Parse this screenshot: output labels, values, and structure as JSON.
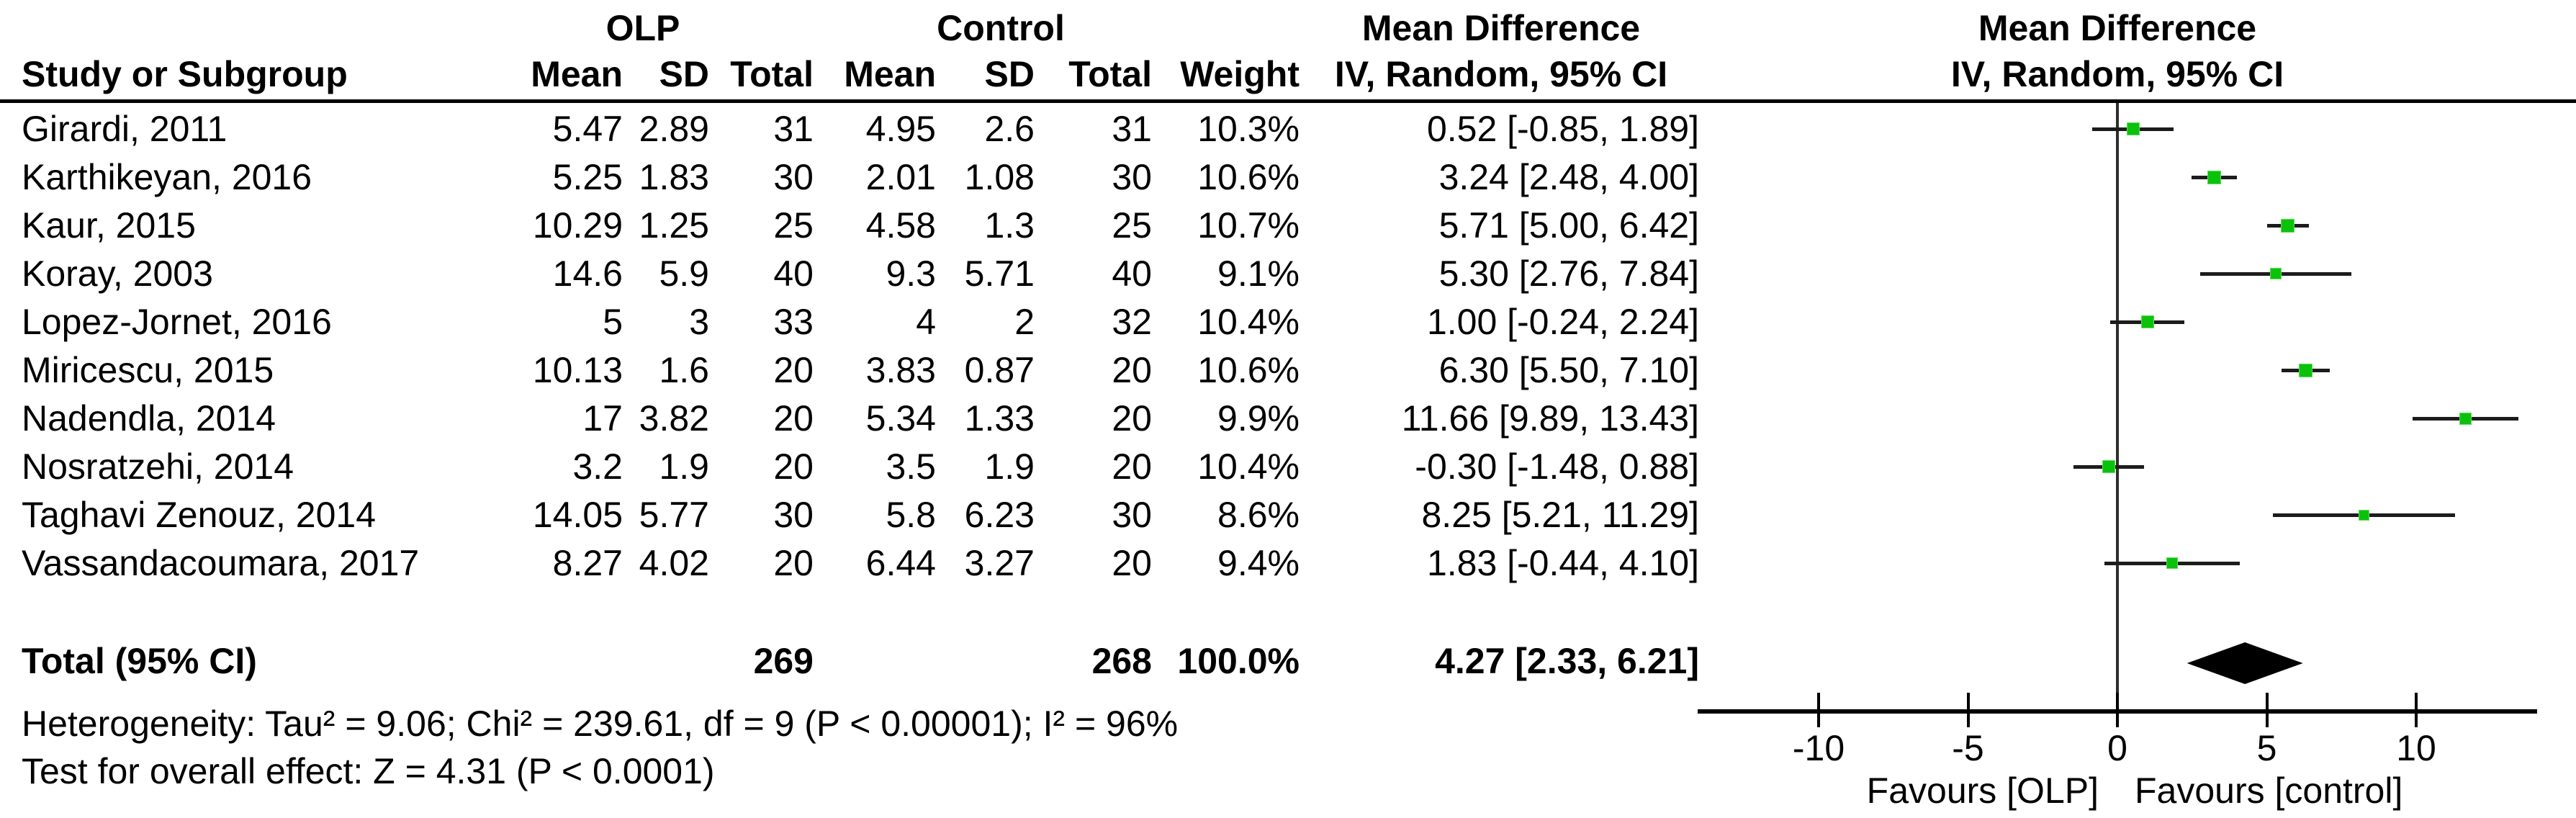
{
  "header": {
    "study_col": "Study or Subgroup",
    "group1": "OLP",
    "group2": "Control",
    "col_mean": "Mean",
    "col_sd": "SD",
    "col_total": "Total",
    "col_weight": "Weight",
    "effect_title": "Mean Difference",
    "effect_subtitle": "IV, Random, 95% CI",
    "plot_title": "Mean Difference",
    "plot_subtitle": "IV, Random, 95% CI"
  },
  "chart_data": {
    "type": "forest",
    "effect_measure": "Mean Difference, IV, Random, 95% CI",
    "marker_color": "#0bc20b",
    "diamond_color": "#000000",
    "studies": [
      {
        "label": "Girardi, 2011",
        "mean1": "5.47",
        "sd1": "2.89",
        "total1": "31",
        "mean2": "4.95",
        "sd2": "2.6",
        "total2": "31",
        "weight": "10.3%",
        "ci_text": "0.52 [-0.85, 1.89]",
        "md": 0.52,
        "lo": -0.85,
        "hi": 1.89,
        "weight_val": 10.3
      },
      {
        "label": "Karthikeyan, 2016",
        "mean1": "5.25",
        "sd1": "1.83",
        "total1": "30",
        "mean2": "2.01",
        "sd2": "1.08",
        "total2": "30",
        "weight": "10.6%",
        "ci_text": "3.24 [2.48, 4.00]",
        "md": 3.24,
        "lo": 2.48,
        "hi": 4.0,
        "weight_val": 10.6
      },
      {
        "label": "Kaur, 2015",
        "mean1": "10.29",
        "sd1": "1.25",
        "total1": "25",
        "mean2": "4.58",
        "sd2": "1.3",
        "total2": "25",
        "weight": "10.7%",
        "ci_text": "5.71 [5.00, 6.42]",
        "md": 5.71,
        "lo": 5.0,
        "hi": 6.42,
        "weight_val": 10.7
      },
      {
        "label": "Koray, 2003",
        "mean1": "14.6",
        "sd1": "5.9",
        "total1": "40",
        "mean2": "9.3",
        "sd2": "5.71",
        "total2": "40",
        "weight": "9.1%",
        "ci_text": "5.30 [2.76, 7.84]",
        "md": 5.3,
        "lo": 2.76,
        "hi": 7.84,
        "weight_val": 9.1
      },
      {
        "label": "Lopez-Jornet, 2016",
        "mean1": "5",
        "sd1": "3",
        "total1": "33",
        "mean2": "4",
        "sd2": "2",
        "total2": "32",
        "weight": "10.4%",
        "ci_text": "1.00 [-0.24, 2.24]",
        "md": 1.0,
        "lo": -0.24,
        "hi": 2.24,
        "weight_val": 10.4
      },
      {
        "label": "Miricescu, 2015",
        "mean1": "10.13",
        "sd1": "1.6",
        "total1": "20",
        "mean2": "3.83",
        "sd2": "0.87",
        "total2": "20",
        "weight": "10.6%",
        "ci_text": "6.30 [5.50, 7.10]",
        "md": 6.3,
        "lo": 5.5,
        "hi": 7.1,
        "weight_val": 10.6
      },
      {
        "label": "Nadendla, 2014",
        "mean1": "17",
        "sd1": "3.82",
        "total1": "20",
        "mean2": "5.34",
        "sd2": "1.33",
        "total2": "20",
        "weight": "9.9%",
        "ci_text": "11.66 [9.89, 13.43]",
        "md": 11.66,
        "lo": 9.89,
        "hi": 13.43,
        "weight_val": 9.9
      },
      {
        "label": "Nosratzehi, 2014",
        "mean1": "3.2",
        "sd1": "1.9",
        "total1": "20",
        "mean2": "3.5",
        "sd2": "1.9",
        "total2": "20",
        "weight": "10.4%",
        "ci_text": "-0.30 [-1.48, 0.88]",
        "md": -0.3,
        "lo": -1.48,
        "hi": 0.88,
        "weight_val": 10.4
      },
      {
        "label": "Taghavi Zenouz, 2014",
        "mean1": "14.05",
        "sd1": "5.77",
        "total1": "30",
        "mean2": "5.8",
        "sd2": "6.23",
        "total2": "30",
        "weight": "8.6%",
        "ci_text": "8.25 [5.21, 11.29]",
        "md": 8.25,
        "lo": 5.21,
        "hi": 11.29,
        "weight_val": 8.6
      },
      {
        "label": "Vassandacoumara, 2017",
        "mean1": "8.27",
        "sd1": "4.02",
        "total1": "20",
        "mean2": "6.44",
        "sd2": "3.27",
        "total2": "20",
        "weight": "9.4%",
        "ci_text": "1.83 [-0.44, 4.10]",
        "md": 1.83,
        "lo": -0.44,
        "hi": 4.1,
        "weight_val": 9.4
      }
    ],
    "total": {
      "label": "Total (95% CI)",
      "total1": "269",
      "total2": "268",
      "weight": "100.0%",
      "ci_text": "4.27 [2.33, 6.21]",
      "md": 4.27,
      "lo": 2.33,
      "hi": 6.21
    },
    "heterogeneity": "Heterogeneity: Tau² = 9.06; Chi² = 239.61, df = 9 (P < 0.00001); I² = 96%",
    "overall_effect": "Test for overall effect: Z = 4.31 (P < 0.0001)",
    "axis": {
      "ticks": [
        -10,
        -5,
        0,
        5,
        10
      ],
      "tick_labels": [
        "-10",
        "-5",
        "0",
        "5",
        "10"
      ],
      "xlim": [
        -14,
        14
      ],
      "favours_left": "Favours [OLP]",
      "favours_right": "Favours [control]"
    }
  }
}
